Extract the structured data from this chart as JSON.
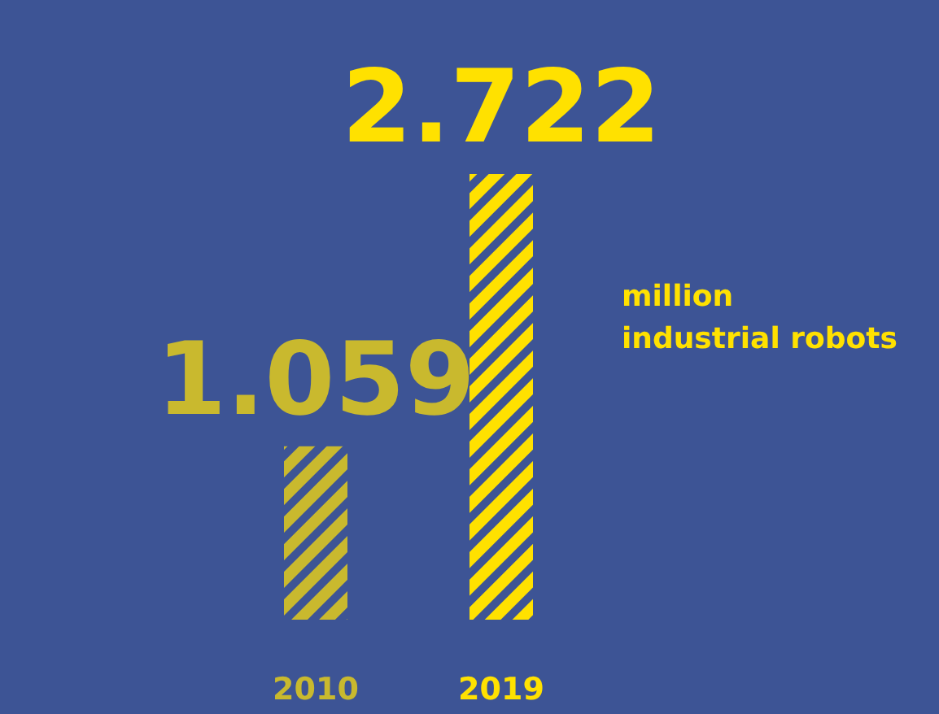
{
  "chart_data": {
    "type": "bar",
    "categories": [
      "2010",
      "2019"
    ],
    "values": [
      1.059,
      2.722
    ],
    "value_labels": [
      "1.059",
      "2.722"
    ],
    "colors": [
      "#c9b92e",
      "#ffe100"
    ],
    "annotations": [
      "million industrial robots"
    ]
  }
}
